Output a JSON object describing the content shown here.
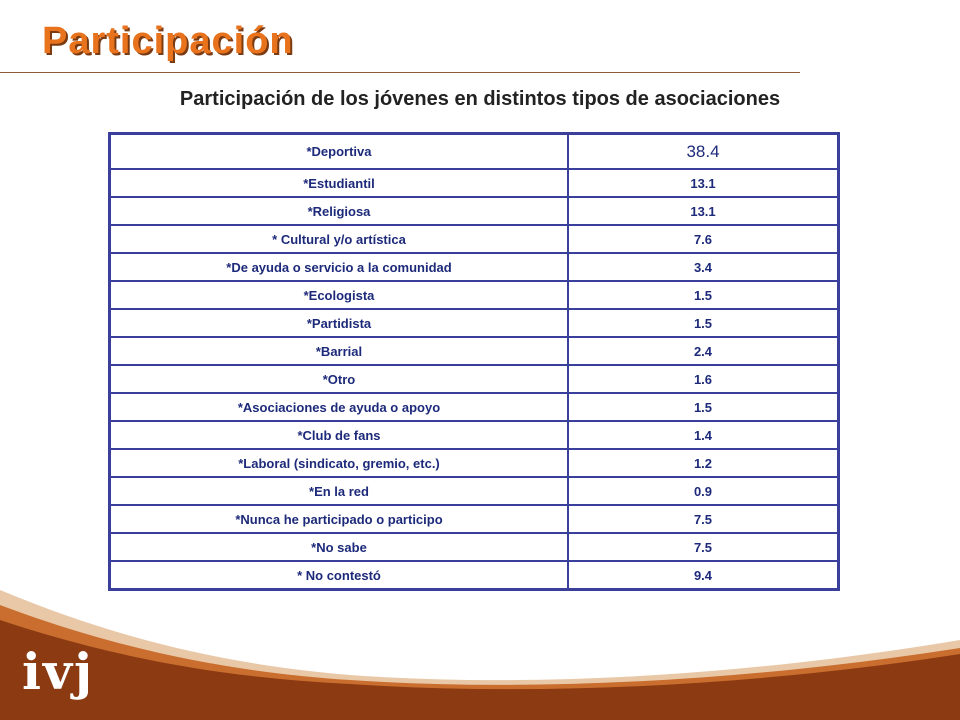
{
  "slide": {
    "title": "Participación",
    "subtitle": "Participación de los jóvenes en distintos tipos de asociaciones",
    "logo_text": "ivj"
  },
  "table": {
    "rows": [
      {
        "category": "*Deportiva",
        "value": "38.4"
      },
      {
        "category": "*Estudiantil",
        "value": "13.1"
      },
      {
        "category": "*Religiosa",
        "value": "13.1"
      },
      {
        "category": "* Cultural y/o artística",
        "value": "7.6"
      },
      {
        "category": "*De ayuda o servicio a la comunidad",
        "value": "3.4"
      },
      {
        "category": "*Ecologista",
        "value": "1.5"
      },
      {
        "category": "*Partidista",
        "value": "1.5"
      },
      {
        "category": "*Barrial",
        "value": "2.4"
      },
      {
        "category": "*Otro",
        "value": "1.6"
      },
      {
        "category": "*Asociaciones de ayuda o apoyo",
        "value": "1.5"
      },
      {
        "category": "*Club de fans",
        "value": "1.4"
      },
      {
        "category": "*Laboral (sindicato, gremio, etc.)",
        "value": "1.2"
      },
      {
        "category": "*En la red",
        "value": "0.9"
      },
      {
        "category": "*Nunca he participado o participo",
        "value": "7.5"
      },
      {
        "category": "*No sabe",
        "value": "7.5"
      },
      {
        "category": "* No contestó",
        "value": "9.4"
      }
    ]
  },
  "colors": {
    "title": "#e8731c",
    "table_border": "#3a3f9b",
    "table_text": "#1d2a7a",
    "footer_brown": "#8b3a12"
  }
}
